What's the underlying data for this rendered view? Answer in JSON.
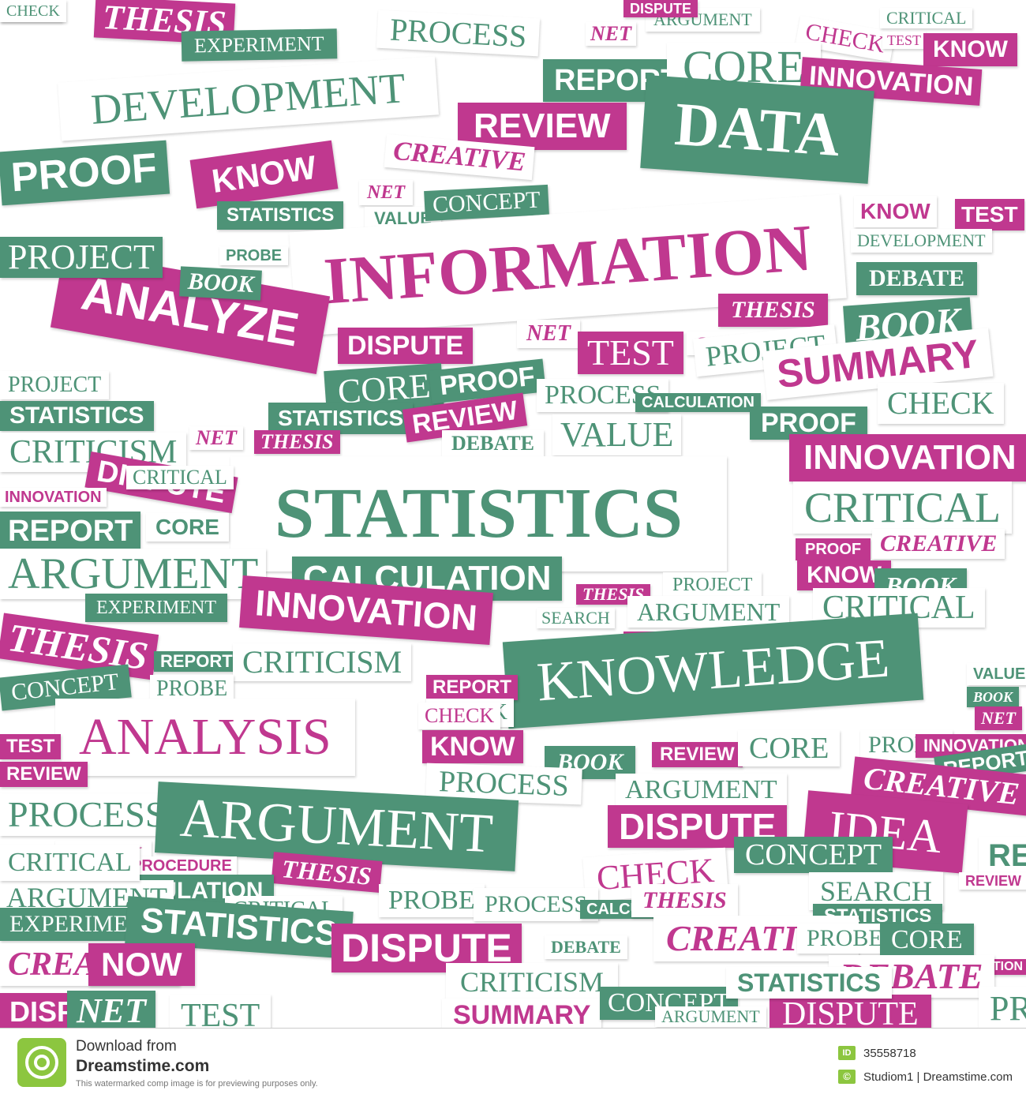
{
  "colors": {
    "magenta": "#c0388f",
    "green": "#4e9377",
    "white": "#ffffff",
    "brand_green": "#8cc63f"
  },
  "tiles": [
    {
      "text": "THESIS",
      "style": "m bserif ital"
    },
    {
      "text": "PROCESS",
      "style": "w tg serif"
    },
    {
      "text": "EXPERIMENT",
      "style": "g serif"
    },
    {
      "text": "ARGUMENT",
      "style": "w tg serif"
    },
    {
      "text": "DISPUTE",
      "style": "m sans"
    },
    {
      "text": "NET",
      "style": "w tm bserif ital"
    },
    {
      "text": "CHECK",
      "style": "w tm serif"
    },
    {
      "text": "TEST",
      "style": "w tm serif"
    },
    {
      "text": "KNOW",
      "style": "m sans"
    },
    {
      "text": "CRITICAL",
      "style": "w tg serif"
    },
    {
      "text": "DEVELOPMENT",
      "style": "w tg serif"
    },
    {
      "text": "REPORT",
      "style": "g sans"
    },
    {
      "text": "CORE",
      "style": "w tg serif"
    },
    {
      "text": "REVIEW",
      "style": "m sans"
    },
    {
      "text": "INNOVATION",
      "style": "m sans"
    },
    {
      "text": "DATA",
      "style": "g bserif"
    },
    {
      "text": "KNOW",
      "style": "m sans"
    },
    {
      "text": "CREATIVE",
      "style": "w tm bserif ital"
    },
    {
      "text": "PROOF",
      "style": "g sans"
    },
    {
      "text": "NET",
      "style": "w tm bserif ital"
    },
    {
      "text": "VALUE",
      "style": "w tg sans"
    },
    {
      "text": "CONCEPT",
      "style": "g serif"
    },
    {
      "text": "STATISTICS",
      "style": "g sans"
    },
    {
      "text": "PROBE",
      "style": "w tg sans"
    },
    {
      "text": "INFORMATION",
      "style": "w tm bserif"
    },
    {
      "text": "KNOW",
      "style": "w tm sans"
    },
    {
      "text": "TEST",
      "style": "m sans"
    },
    {
      "text": "DEVELOPMENT",
      "style": "w tg serif"
    },
    {
      "text": "ANALYZE",
      "style": "m sans"
    },
    {
      "text": "PROJECT",
      "style": "g serif"
    },
    {
      "text": "BOOK",
      "style": "g bserif ital"
    },
    {
      "text": "DEBATE",
      "style": "g bserif"
    },
    {
      "text": "THESIS",
      "style": "m bserif ital"
    },
    {
      "text": "BOOK",
      "style": "g bserif ital"
    },
    {
      "text": "DISPUTE",
      "style": "m sans"
    },
    {
      "text": "NET",
      "style": "w tm bserif ital"
    },
    {
      "text": "TEST",
      "style": "m serif"
    },
    {
      "text": "CREATIVE",
      "style": "w tm bserif ital"
    },
    {
      "text": "PROJECT",
      "style": "w tg serif"
    },
    {
      "text": "SUMMARY",
      "style": "w tm sans"
    },
    {
      "text": "CORE",
      "style": "g serif"
    },
    {
      "text": "PROOF",
      "style": "g sans"
    },
    {
      "text": "PROCESS",
      "style": "w tg serif"
    },
    {
      "text": "CHECK",
      "style": "w tg serif"
    },
    {
      "text": "PROJECT",
      "style": "w tg serif"
    },
    {
      "text": "STATISTICS",
      "style": "g sans"
    },
    {
      "text": "STATISTICS",
      "style": "g sans"
    },
    {
      "text": "REVIEW",
      "style": "m sans"
    },
    {
      "text": "CALCULATION",
      "style": "g sans"
    },
    {
      "text": "PROOF",
      "style": "g sans"
    },
    {
      "text": "CRITICISM",
      "style": "w tg serif"
    },
    {
      "text": "NET",
      "style": "w tm bserif ital"
    },
    {
      "text": "THESIS",
      "style": "m bserif ital"
    },
    {
      "text": "DEBATE",
      "style": "w tg bserif"
    },
    {
      "text": "VALUE",
      "style": "w tg serif"
    },
    {
      "text": "INNOVATION",
      "style": "m sans"
    },
    {
      "text": "STATISTICS",
      "style": "w tg bserif"
    },
    {
      "text": "DISPUTE",
      "style": "m sans"
    },
    {
      "text": "CRITICAL",
      "style": "w tg serif"
    },
    {
      "text": "INNOVATION",
      "style": "w tm sans"
    },
    {
      "text": "REPORT",
      "style": "g sans"
    },
    {
      "text": "CORE",
      "style": "w tg sans"
    },
    {
      "text": "CRITICAL",
      "style": "w tg serif"
    },
    {
      "text": "PROOF",
      "style": "m sans"
    },
    {
      "text": "CREATIVE",
      "style": "w tm bserif ital"
    },
    {
      "text": "ARGUMENT",
      "style": "w tg serif"
    },
    {
      "text": "KNOW",
      "style": "m sans"
    },
    {
      "text": "BOOK",
      "style": "g bserif ital"
    },
    {
      "text": "CALCULATION",
      "style": "g sans"
    },
    {
      "text": "PROJECT",
      "style": "w tg serif"
    },
    {
      "text": "EXPERIMENT",
      "style": "g serif"
    },
    {
      "text": "INNOVATION",
      "style": "m sans"
    },
    {
      "text": "THESIS",
      "style": "m bserif ital"
    },
    {
      "text": "ARGUMENT",
      "style": "w tg serif"
    },
    {
      "text": "CRITICAL",
      "style": "w tg serif"
    },
    {
      "text": "SEARCH",
      "style": "w tg serif"
    },
    {
      "text": "REVIEW",
      "style": "m sans"
    },
    {
      "text": "THESIS",
      "style": "m bserif ital"
    },
    {
      "text": "REPORT",
      "style": "g sans"
    },
    {
      "text": "CRITICISM",
      "style": "w tg serif"
    },
    {
      "text": "KNOWLEDGE",
      "style": "g serif"
    },
    {
      "text": "VALUE",
      "style": "w tg sans"
    },
    {
      "text": "BOOK",
      "style": "g bserif ital"
    },
    {
      "text": "CONCEPT",
      "style": "g serif"
    },
    {
      "text": "PROBE",
      "style": "w tg serif"
    },
    {
      "text": "REPORT",
      "style": "m sans"
    },
    {
      "text": "CHECK",
      "style": "w tg serif"
    },
    {
      "text": "NET",
      "style": "m bserif ital"
    },
    {
      "text": "ANALYSIS",
      "style": "w tm serif"
    },
    {
      "text": "CHECK",
      "style": "w tm serif"
    },
    {
      "text": "KNOW",
      "style": "m sans"
    },
    {
      "text": "BOOK",
      "style": "g bserif ital"
    },
    {
      "text": "REVIEW",
      "style": "m sans"
    },
    {
      "text": "CORE",
      "style": "w tg serif"
    },
    {
      "text": "PROBE",
      "style": "w tg serif"
    },
    {
      "text": "INNOVATION",
      "style": "m sans"
    },
    {
      "text": "TEST",
      "style": "m sans"
    },
    {
      "text": "REVIEW",
      "style": "m sans"
    },
    {
      "text": "REPORT",
      "style": "g sans"
    },
    {
      "text": "PROCESS",
      "style": "w tg serif"
    },
    {
      "text": "ARGUMENT",
      "style": "w tg serif"
    },
    {
      "text": "CREATIVE",
      "style": "m bserif ital"
    },
    {
      "text": "PROCESS",
      "style": "w tg serif"
    },
    {
      "text": "ARGUMENT",
      "style": "g serif"
    },
    {
      "text": "DISPUTE",
      "style": "m sans"
    },
    {
      "text": "IDEA",
      "style": "m serif"
    },
    {
      "text": "REPORT",
      "style": "w tg sans"
    },
    {
      "text": "CHECK",
      "style": "w tm serif"
    },
    {
      "text": "PROCEDURE",
      "style": "w tm sans"
    },
    {
      "text": "THESIS",
      "style": "m bserif ital"
    },
    {
      "text": "CHECK",
      "style": "w tm serif"
    },
    {
      "text": "CONCEPT",
      "style": "g serif"
    },
    {
      "text": "CALCULATION",
      "style": "g sans"
    },
    {
      "text": "SEARCH",
      "style": "w tg serif"
    },
    {
      "text": "REVIEW",
      "style": "w tm sans"
    },
    {
      "text": "ARGUMENT",
      "style": "w tg serif"
    },
    {
      "text": "CRITICAL",
      "style": "w tg serif"
    },
    {
      "text": "PROBE",
      "style": "w tg serif"
    },
    {
      "text": "PROCESS",
      "style": "w tg serif"
    },
    {
      "text": "CALCULATION",
      "style": "g sans"
    },
    {
      "text": "THESIS",
      "style": "w tm bserif ital"
    },
    {
      "text": "STATISTICS",
      "style": "g sans"
    },
    {
      "text": "EXPERIMENT",
      "style": "g serif"
    },
    {
      "text": "STATISTICS",
      "style": "g sans"
    },
    {
      "text": "DISPUTE",
      "style": "m sans"
    },
    {
      "text": "DEBATE",
      "style": "w tg bserif"
    },
    {
      "text": "CREATIVE",
      "style": "w tm bserif ital"
    },
    {
      "text": "PROBE",
      "style": "w tg serif"
    },
    {
      "text": "CORE",
      "style": "g serif"
    },
    {
      "text": "CREATIVE",
      "style": "w tm bserif ital"
    },
    {
      "text": "NOW",
      "style": "m sans"
    },
    {
      "text": "CRITICISM",
      "style": "w tg serif"
    },
    {
      "text": "INNOVATION",
      "style": "m sans"
    },
    {
      "text": "DEBATE",
      "style": "w tm bserif ital"
    },
    {
      "text": "DISPUTE",
      "style": "m sans"
    },
    {
      "text": "NET",
      "style": "g bserif ital"
    },
    {
      "text": "TEST",
      "style": "w tg serif"
    },
    {
      "text": "SUMMARY",
      "style": "w tm sans"
    },
    {
      "text": "CONCEPT",
      "style": "g serif"
    },
    {
      "text": "ARGUMENT",
      "style": "w tg serif"
    },
    {
      "text": "DISPUTE",
      "style": "m serif"
    },
    {
      "text": "STATISTICS",
      "style": "w tg sans"
    },
    {
      "text": "PROCESS",
      "style": "w tg serif"
    },
    {
      "text": "CRITICAL",
      "style": "w tg serif"
    },
    {
      "text": "KNOW",
      "style": "m sans"
    },
    {
      "text": "CHECK",
      "style": "w tg serif"
    }
  ],
  "footer": {
    "download_from": "Download from",
    "site": "Dreamstime.com",
    "disclaimer": "This watermarked comp image is for previewing purposes only.",
    "id_label": "ID",
    "image_id": "35558718",
    "copyright_symbol": "©",
    "credit": "Studiom1 | Dreamstime.com"
  }
}
